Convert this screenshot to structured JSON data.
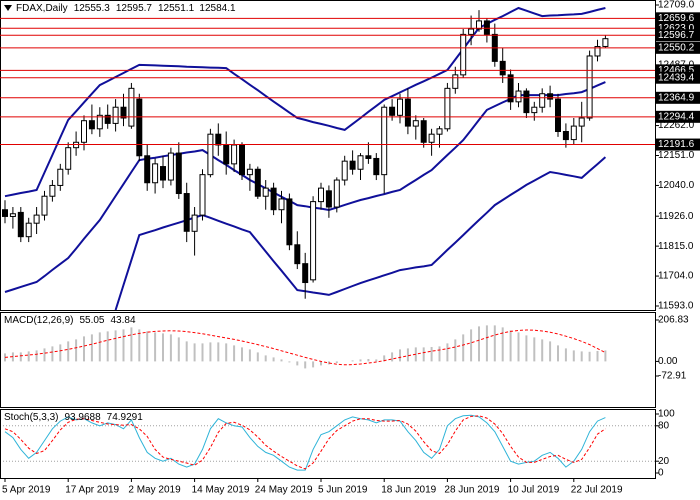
{
  "chart_data": [
    {
      "type": "candlestick",
      "title": "FDAX,Daily",
      "categories": [
        "5 Apr 2019",
        null,
        null,
        null,
        null,
        null,
        null,
        null,
        "17 Apr 2019",
        null,
        null,
        null,
        null,
        null,
        null,
        null,
        "2 May 2019",
        null,
        null,
        null,
        null,
        null,
        null,
        null,
        "14 May 2019",
        null,
        null,
        null,
        null,
        null,
        null,
        null,
        "24 May 2019",
        null,
        null,
        null,
        null,
        null,
        null,
        null,
        "5 Jun 2019",
        null,
        null,
        null,
        null,
        null,
        null,
        null,
        "18 Jun 2019",
        null,
        null,
        null,
        null,
        null,
        null,
        null,
        "28 Jun 2019",
        null,
        null,
        null,
        null,
        null,
        null,
        null,
        "10 Jul 2019",
        null,
        null,
        null,
        null,
        null,
        null,
        null,
        "22 Jul 2019",
        null,
        null,
        null,
        null
      ],
      "open": [
        11950,
        11925,
        11940,
        11850,
        11900,
        11930,
        12000,
        12040,
        12100,
        12180,
        12200,
        12280,
        12250,
        12300,
        12270,
        12330,
        12260,
        12360,
        12150,
        12050,
        12110,
        12060,
        12160,
        12010,
        11870,
        11930,
        12080,
        12230,
        12190,
        12120,
        12190,
        12080,
        12100,
        12000,
        12030,
        11950,
        11990,
        11820,
        11750,
        11690,
        11980,
        12020,
        11960,
        12060,
        12130,
        12100,
        12150,
        12140,
        12080,
        12330,
        12300,
        12360,
        12260,
        12280,
        12200,
        12230,
        12250,
        12400,
        12450,
        12600,
        12620,
        12650,
        12600,
        12500,
        12450,
        12350,
        12390,
        12310,
        12330,
        12380,
        12360,
        12240,
        12210,
        12260,
        12290,
        12520,
        12555.3
      ],
      "high": [
        11985,
        11960,
        11960,
        11920,
        11960,
        12020,
        12060,
        12120,
        12200,
        12240,
        12300,
        12340,
        12330,
        12340,
        12360,
        12380,
        12420,
        12380,
        12190,
        12140,
        12150,
        12180,
        12200,
        12050,
        11960,
        12100,
        12250,
        12270,
        12240,
        12210,
        12200,
        12120,
        12110,
        12060,
        12050,
        12020,
        12010,
        11870,
        11790,
        12000,
        12050,
        12040,
        12070,
        12150,
        12170,
        12160,
        12200,
        12160,
        12340,
        12360,
        12380,
        12400,
        12300,
        12290,
        12250,
        12260,
        12420,
        12480,
        12620,
        12670,
        12690,
        12660,
        12640,
        12550,
        12470,
        12420,
        12400,
        12350,
        12400,
        12410,
        12380,
        12270,
        12290,
        12350,
        12540,
        12580,
        12595.7
      ],
      "low": [
        11900,
        11880,
        11830,
        11830,
        11860,
        11910,
        11980,
        12020,
        12080,
        12150,
        12170,
        12230,
        12220,
        12250,
        12240,
        12260,
        12250,
        12130,
        12020,
        12010,
        12030,
        12040,
        11990,
        11830,
        11780,
        11910,
        12070,
        12150,
        12080,
        12090,
        12060,
        12020,
        11990,
        11950,
        11930,
        11900,
        11800,
        11730,
        11620,
        11680,
        11950,
        11920,
        11940,
        12040,
        12080,
        12060,
        12120,
        12060,
        12010,
        12280,
        12270,
        12230,
        12210,
        12180,
        12150,
        12180,
        12240,
        12380,
        12440,
        12560,
        12610,
        12570,
        12480,
        12420,
        12320,
        12330,
        12290,
        12280,
        12310,
        12330,
        12220,
        12180,
        12190,
        12200,
        12280,
        12500,
        12551.1
      ],
      "close": [
        11925,
        11935,
        11850,
        11900,
        11930,
        12000,
        12040,
        12100,
        12180,
        12200,
        12280,
        12250,
        12300,
        12270,
        12330,
        12290,
        12400,
        12150,
        12050,
        12120,
        12060,
        12160,
        12010,
        11870,
        11930,
        12080,
        12230,
        12190,
        12120,
        12190,
        12080,
        12100,
        12000,
        12030,
        11950,
        11990,
        11820,
        11750,
        11680,
        11980,
        12030,
        11960,
        12060,
        12130,
        12100,
        12150,
        12140,
        12080,
        12330,
        12300,
        12360,
        12260,
        12280,
        12200,
        12230,
        12250,
        12400,
        12450,
        12600,
        12620,
        12650,
        12600,
        12500,
        12450,
        12350,
        12390,
        12310,
        12330,
        12380,
        12360,
        12240,
        12210,
        12260,
        12290,
        12520,
        12555,
        12584.1
      ],
      "up_color": "#ffffff",
      "down_color": "#000000",
      "bands": {
        "color": "#10109a",
        "upper": [
          12000,
          12006,
          12012,
          12017,
          12023,
          12088,
          12153,
          12218,
          12283,
          12315,
          12348,
          12380,
          12412,
          12427,
          12442,
          12457,
          12472,
          12487,
          12486,
          12485,
          12484,
          12483,
          12482,
          12480,
          12479,
          12478,
          12477,
          12476,
          12475,
          12454,
          12434,
          12413,
          12393,
          12372,
          12351,
          12331,
          12310,
          12290,
          12283,
          12275,
          12268,
          12261,
          12253,
          12246,
          12268,
          12290,
          12313,
          12335,
          12357,
          12371,
          12385,
          12399,
          12413,
          12426,
          12440,
          12454,
          12468,
          12507,
          12546,
          12585,
          12624,
          12639,
          12654,
          12668,
          12683,
          12698,
          12688,
          12678,
          12668,
          12670,
          12671,
          12673,
          12674,
          12676,
          12683,
          12691,
          12698
        ],
        "middle": [
          11645,
          11654,
          11664,
          11673,
          11682,
          11704,
          11727,
          11749,
          11771,
          11806,
          11842,
          11877,
          11912,
          11956,
          12001,
          12045,
          12090,
          12134,
          12139,
          12143,
          12148,
          12153,
          12157,
          12162,
          12166,
          12171,
          12153,
          12134,
          12116,
          12097,
          12079,
          12060,
          12045,
          12029,
          12014,
          11998,
          11983,
          11967,
          11963,
          11958,
          11954,
          11949,
          11958,
          11968,
          11977,
          11986,
          11993,
          12001,
          12008,
          12016,
          12023,
          12042,
          12060,
          12079,
          12097,
          12125,
          12153,
          12180,
          12208,
          12245,
          12283,
          12320,
          12334,
          12348,
          12361,
          12375,
          12375,
          12375,
          12375,
          12375,
          12375,
          12379,
          12382,
          12386,
          12398,
          12411,
          12423
        ],
        "lower": [
          null,
          null,
          null,
          null,
          null,
          null,
          null,
          null,
          null,
          null,
          null,
          null,
          null,
          null,
          11578,
          11671,
          11763,
          11856,
          11865,
          11874,
          11884,
          11893,
          11902,
          11911,
          11921,
          11930,
          11920,
          11909,
          11898,
          11888,
          11877,
          11867,
          11831,
          11795,
          11759,
          11724,
          11688,
          11652,
          11648,
          11643,
          11639,
          11634,
          11645,
          11656,
          11667,
          11678,
          11688,
          11697,
          11707,
          11716,
          11726,
          11731,
          11736,
          11740,
          11745,
          11773,
          11801,
          11828,
          11856,
          11884,
          11912,
          11939,
          11967,
          11986,
          12005,
          12023,
          12042,
          12058,
          12074,
          12090,
          12085,
          12079,
          12074,
          12068,
          12094,
          12119,
          12145
        ]
      },
      "levels": [
        12659.6,
        {
          "value": 12623,
          "label": "12623.0"
        },
        12596.7,
        12550.2,
        12466.5,
        12439.4,
        12364.9,
        12294.4,
        12191.6
      ],
      "level_color": "#e00000",
      "ylim": [
        11593,
        12709
      ],
      "yticks": [
        {
          "value": 12709,
          "label": "12709.0"
        },
        {
          "value": 12487,
          "label": "12487.0"
        },
        {
          "value": 12262,
          "label": "12262.0"
        },
        {
          "value": 12151,
          "label": "12151.0"
        },
        {
          "value": 12040,
          "label": "12040.0"
        },
        {
          "value": 11926,
          "label": "11926.0"
        },
        {
          "value": 11815,
          "label": "11815.0"
        },
        {
          "value": 11704,
          "label": "11704.0"
        },
        {
          "value": 11593,
          "label": "11593.0"
        }
      ]
    },
    {
      "type": "macd",
      "title": "MACD(12,26,9)",
      "series": [
        {
          "color": "#c0c0c0",
          "style": "histogram",
          "values": [
            40,
            45,
            45,
            50,
            55,
            65,
            75,
            85,
            100,
            110,
            125,
            135,
            145,
            150,
            155,
            160,
            170,
            160,
            150,
            145,
            140,
            135,
            120,
            100,
            90,
            90,
            95,
            95,
            90,
            80,
            70,
            60,
            45,
            30,
            20,
            10,
            -5,
            -20,
            -35,
            -30,
            -20,
            -15,
            -8,
            0,
            5,
            10,
            12,
            10,
            30,
            45,
            60,
            65,
            70,
            70,
            72,
            75,
            90,
            110,
            135,
            160,
            175,
            180,
            180,
            170,
            155,
            145,
            130,
            120,
            110,
            100,
            80,
            65,
            55,
            50,
            48,
            52,
            55.05
          ]
        },
        {
          "color": "#ff0000",
          "style": "dashed",
          "values": [
            20,
            24,
            28,
            32,
            36,
            41,
            47,
            53,
            60,
            68,
            77,
            86,
            96,
            106,
            115,
            124,
            133,
            140,
            146,
            150,
            152,
            153,
            152,
            149,
            144,
            138,
            131,
            124,
            117,
            110,
            102,
            93,
            84,
            74,
            64,
            53,
            42,
            31,
            20,
            10,
            0,
            -8,
            -14,
            -17,
            -16,
            -13,
            -8,
            -3,
            4,
            12,
            20,
            28,
            36,
            44,
            51,
            57,
            64,
            72,
            82,
            93,
            106,
            119,
            132,
            142,
            150,
            155,
            157,
            156,
            152,
            146,
            137,
            126,
            114,
            100,
            84,
            64,
            43.84
          ]
        }
      ],
      "ylim": [
        -72.91,
        206.83
      ],
      "yticks": [
        206.83,
        {
          "value": 0,
          "label": "0.00"
        },
        -72.91
      ]
    },
    {
      "type": "stochastic",
      "title": "Stoch(5,3,3)",
      "series": [
        {
          "color": "#2fb4d8",
          "style": "solid",
          "values": [
            70,
            60,
            40,
            25,
            35,
            55,
            75,
            88,
            95,
            90,
            92,
            85,
            80,
            85,
            82,
            75,
            90,
            60,
            35,
            25,
            20,
            25,
            15,
            10,
            15,
            40,
            75,
            92,
            85,
            80,
            78,
            60,
            45,
            35,
            30,
            20,
            10,
            5,
            5,
            40,
            65,
            70,
            80,
            90,
            95,
            92,
            90,
            85,
            90,
            90,
            88,
            70,
            55,
            35,
            25,
            40,
            80,
            92,
            97,
            98,
            95,
            85,
            70,
            45,
            20,
            15,
            18,
            20,
            30,
            35,
            25,
            10,
            20,
            40,
            70,
            88,
            93.9688
          ]
        },
        {
          "color": "#ff0000",
          "style": "dashed",
          "values": [
            75,
            70,
            57,
            42,
            33,
            38,
            55,
            73,
            86,
            91,
            92,
            89,
            86,
            83,
            82,
            81,
            82,
            75,
            62,
            40,
            27,
            23,
            20,
            17,
            13,
            22,
            43,
            69,
            84,
            86,
            81,
            73,
            61,
            47,
            37,
            28,
            20,
            12,
            7,
            17,
            37,
            58,
            72,
            80,
            88,
            92,
            92,
            89,
            88,
            88,
            89,
            83,
            71,
            53,
            38,
            33,
            48,
            71,
            90,
            96,
            97,
            93,
            83,
            67,
            45,
            27,
            18,
            18,
            23,
            28,
            30,
            23,
            18,
            23,
            43,
            66,
            74.9291
          ]
        }
      ],
      "ylim": [
        0,
        100
      ],
      "yticks": [
        100,
        80,
        20,
        0
      ],
      "grid": true
    }
  ]
}
